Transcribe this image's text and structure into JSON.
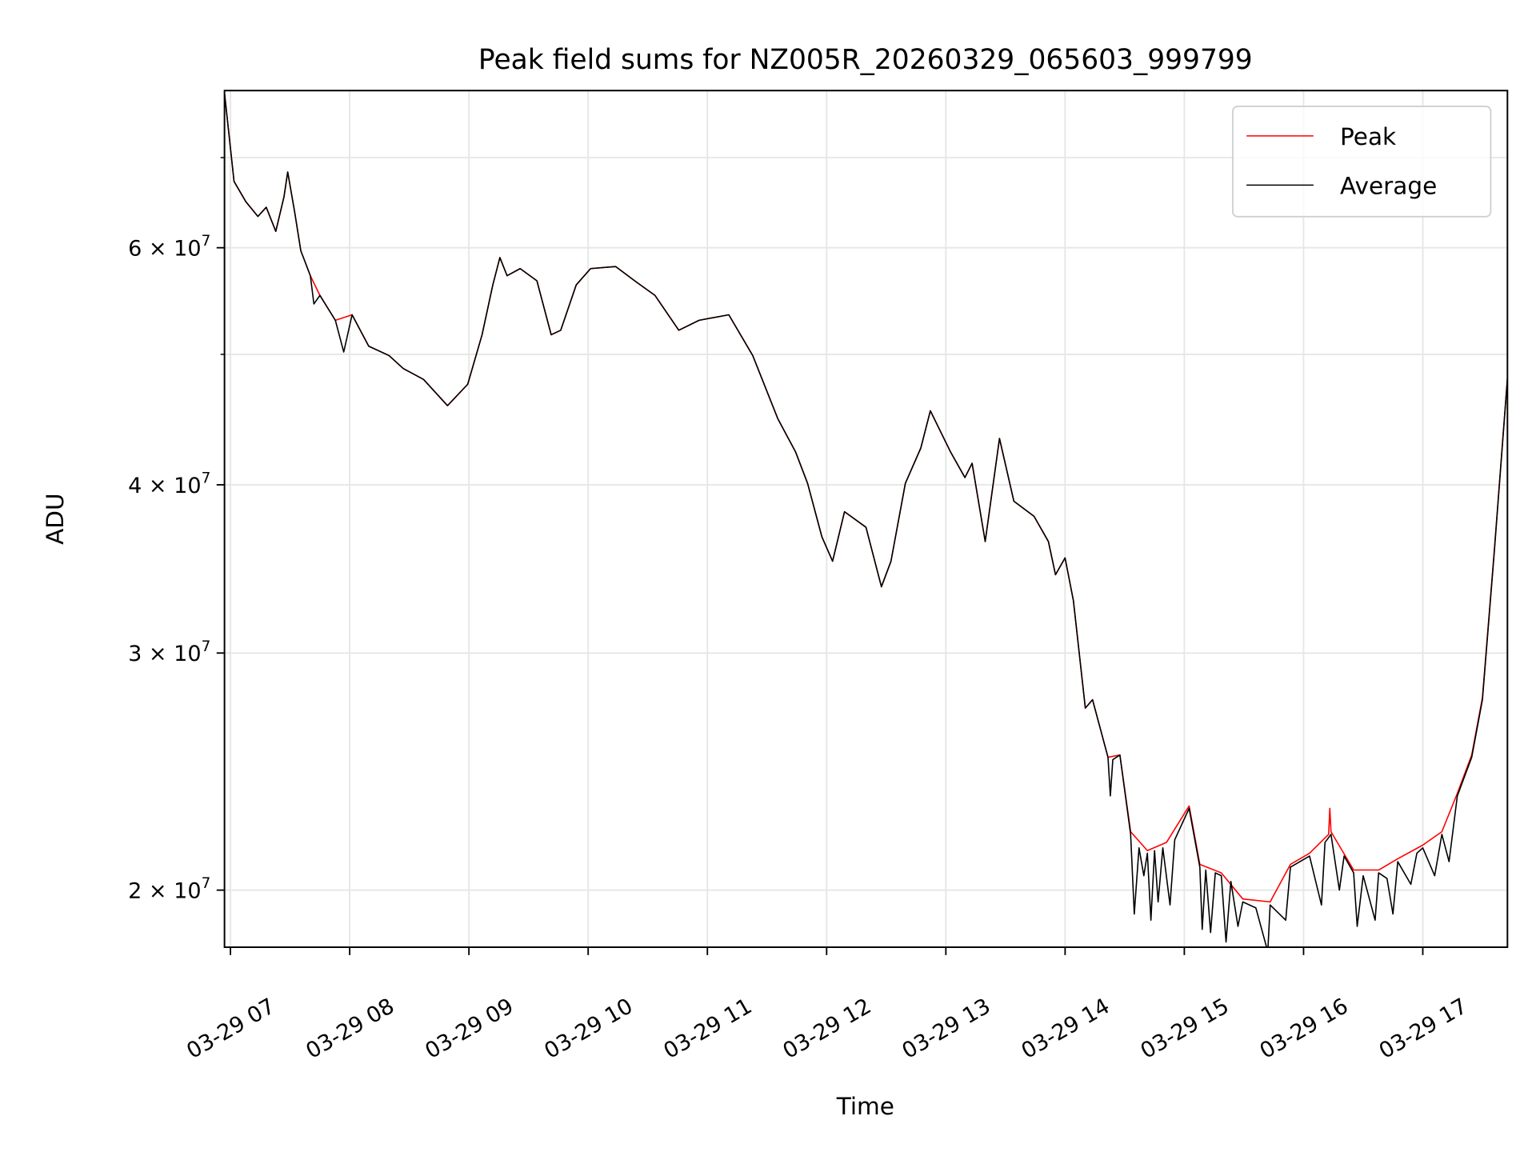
{
  "chart_data": {
    "type": "line",
    "title": "Peak field sums for NZ005R_20260329_065603_999799",
    "xlabel": "Time",
    "ylabel": "ADU",
    "x_unit": "hour of day (2026-03-29)",
    "y_unit": "ADU (x1e7)",
    "yscale": "log",
    "xlim": [
      6.95,
      17.71
    ],
    "ylim": [
      1.814,
      7.85
    ],
    "grid": true,
    "legend_position": "top-right",
    "x_ticks": [
      {
        "value": 7,
        "label": "03-29 07"
      },
      {
        "value": 8,
        "label": "03-29 08"
      },
      {
        "value": 9,
        "label": "03-29 09"
      },
      {
        "value": 10,
        "label": "03-29 10"
      },
      {
        "value": 11,
        "label": "03-29 11"
      },
      {
        "value": 12,
        "label": "03-29 12"
      },
      {
        "value": 13,
        "label": "03-29 13"
      },
      {
        "value": 14,
        "label": "03-29 14"
      },
      {
        "value": 15,
        "label": "03-29 15"
      },
      {
        "value": 16,
        "label": "03-29 16"
      },
      {
        "value": 17,
        "label": "03-29 17"
      }
    ],
    "y_ticks": [
      {
        "value": 2,
        "mantissa": "2",
        "label": "2 × 10",
        "exp": "7"
      },
      {
        "value": 3,
        "mantissa": "3",
        "label": "3 × 10",
        "exp": "7"
      },
      {
        "value": 4,
        "mantissa": "4",
        "label": "4 × 10",
        "exp": "7"
      },
      {
        "value": 6,
        "mantissa": "6",
        "label": "6 × 10",
        "exp": "7"
      }
    ],
    "y_minor_ticks": [
      5,
      7
    ],
    "series": [
      {
        "name": "Peak",
        "color": "#ff0000",
        "points": [
          [
            6.95,
            7.82
          ],
          [
            7.03,
            6.72
          ],
          [
            7.13,
            6.49
          ],
          [
            7.23,
            6.33
          ],
          [
            7.3,
            6.43
          ],
          [
            7.38,
            6.17
          ],
          [
            7.45,
            6.55
          ],
          [
            7.48,
            6.83
          ],
          [
            7.54,
            6.37
          ],
          [
            7.59,
            5.97
          ],
          [
            7.67,
            5.72
          ],
          [
            7.75,
            5.53
          ],
          [
            7.88,
            5.3
          ],
          [
            8.02,
            5.35
          ],
          [
            8.16,
            5.07
          ],
          [
            8.33,
            4.99
          ],
          [
            8.45,
            4.88
          ],
          [
            8.62,
            4.79
          ],
          [
            8.82,
            4.58
          ],
          [
            8.99,
            4.75
          ],
          [
            9.11,
            5.17
          ],
          [
            9.2,
            5.63
          ],
          [
            9.26,
            5.9
          ],
          [
            9.32,
            5.72
          ],
          [
            9.43,
            5.79
          ],
          [
            9.57,
            5.67
          ],
          [
            9.69,
            5.17
          ],
          [
            9.77,
            5.21
          ],
          [
            9.9,
            5.63
          ],
          [
            10.02,
            5.79
          ],
          [
            10.23,
            5.81
          ],
          [
            10.39,
            5.67
          ],
          [
            10.56,
            5.53
          ],
          [
            10.76,
            5.21
          ],
          [
            10.93,
            5.3
          ],
          [
            11.18,
            5.35
          ],
          [
            11.38,
            4.99
          ],
          [
            11.59,
            4.48
          ],
          [
            11.74,
            4.23
          ],
          [
            11.84,
            4.01
          ],
          [
            11.96,
            3.66
          ],
          [
            12.05,
            3.51
          ],
          [
            12.15,
            3.82
          ],
          [
            12.33,
            3.72
          ],
          [
            12.46,
            3.36
          ],
          [
            12.54,
            3.51
          ],
          [
            12.66,
            4.01
          ],
          [
            12.79,
            4.26
          ],
          [
            12.87,
            4.54
          ],
          [
            13.04,
            4.23
          ],
          [
            13.16,
            4.05
          ],
          [
            13.22,
            4.15
          ],
          [
            13.33,
            3.63
          ],
          [
            13.45,
            4.33
          ],
          [
            13.57,
            3.89
          ],
          [
            13.74,
            3.79
          ],
          [
            13.86,
            3.63
          ],
          [
            13.92,
            3.43
          ],
          [
            14.0,
            3.53
          ],
          [
            14.07,
            3.28
          ],
          [
            14.17,
            2.73
          ],
          [
            14.23,
            2.77
          ],
          [
            14.36,
            2.51
          ],
          [
            14.46,
            2.52
          ],
          [
            14.55,
            2.21
          ],
          [
            14.69,
            2.14
          ],
          [
            14.85,
            2.17
          ],
          [
            15.04,
            2.31
          ],
          [
            15.13,
            2.09
          ],
          [
            15.31,
            2.06
          ],
          [
            15.49,
            1.97
          ],
          [
            15.72,
            1.96
          ],
          [
            15.89,
            2.09
          ],
          [
            16.05,
            2.13
          ],
          [
            16.21,
            2.2
          ],
          [
            16.22,
            2.3
          ],
          [
            16.23,
            2.21
          ],
          [
            16.42,
            2.07
          ],
          [
            16.63,
            2.07
          ],
          [
            16.79,
            2.11
          ],
          [
            17.0,
            2.16
          ],
          [
            17.16,
            2.21
          ],
          [
            17.29,
            2.36
          ],
          [
            17.41,
            2.52
          ],
          [
            17.5,
            2.78
          ],
          [
            17.6,
            3.58
          ],
          [
            17.71,
            4.8
          ]
        ]
      },
      {
        "name": "Average",
        "color": "#000000",
        "points": [
          [
            6.95,
            7.82
          ],
          [
            7.03,
            6.72
          ],
          [
            7.13,
            6.49
          ],
          [
            7.23,
            6.33
          ],
          [
            7.3,
            6.43
          ],
          [
            7.38,
            6.17
          ],
          [
            7.45,
            6.55
          ],
          [
            7.48,
            6.83
          ],
          [
            7.54,
            6.37
          ],
          [
            7.59,
            5.97
          ],
          [
            7.67,
            5.72
          ],
          [
            7.7,
            5.45
          ],
          [
            7.75,
            5.53
          ],
          [
            7.88,
            5.3
          ],
          [
            7.95,
            5.02
          ],
          [
            8.02,
            5.35
          ],
          [
            8.16,
            5.07
          ],
          [
            8.33,
            4.99
          ],
          [
            8.45,
            4.88
          ],
          [
            8.62,
            4.79
          ],
          [
            8.82,
            4.58
          ],
          [
            8.99,
            4.75
          ],
          [
            9.11,
            5.17
          ],
          [
            9.2,
            5.63
          ],
          [
            9.26,
            5.9
          ],
          [
            9.32,
            5.72
          ],
          [
            9.43,
            5.79
          ],
          [
            9.57,
            5.67
          ],
          [
            9.69,
            5.17
          ],
          [
            9.77,
            5.21
          ],
          [
            9.9,
            5.63
          ],
          [
            10.02,
            5.79
          ],
          [
            10.23,
            5.81
          ],
          [
            10.39,
            5.67
          ],
          [
            10.56,
            5.53
          ],
          [
            10.76,
            5.21
          ],
          [
            10.93,
            5.3
          ],
          [
            11.18,
            5.35
          ],
          [
            11.38,
            4.99
          ],
          [
            11.59,
            4.48
          ],
          [
            11.74,
            4.23
          ],
          [
            11.84,
            4.01
          ],
          [
            11.96,
            3.66
          ],
          [
            12.05,
            3.51
          ],
          [
            12.15,
            3.82
          ],
          [
            12.33,
            3.72
          ],
          [
            12.46,
            3.36
          ],
          [
            12.54,
            3.51
          ],
          [
            12.66,
            4.01
          ],
          [
            12.79,
            4.26
          ],
          [
            12.87,
            4.54
          ],
          [
            13.04,
            4.23
          ],
          [
            13.16,
            4.05
          ],
          [
            13.22,
            4.15
          ],
          [
            13.33,
            3.63
          ],
          [
            13.45,
            4.33
          ],
          [
            13.57,
            3.89
          ],
          [
            13.74,
            3.79
          ],
          [
            13.86,
            3.63
          ],
          [
            13.92,
            3.43
          ],
          [
            14.0,
            3.53
          ],
          [
            14.07,
            3.28
          ],
          [
            14.17,
            2.73
          ],
          [
            14.23,
            2.77
          ],
          [
            14.36,
            2.51
          ],
          [
            14.38,
            2.35
          ],
          [
            14.4,
            2.5
          ],
          [
            14.46,
            2.52
          ],
          [
            14.55,
            2.2
          ],
          [
            14.58,
            1.92
          ],
          [
            14.62,
            2.15
          ],
          [
            14.66,
            2.05
          ],
          [
            14.69,
            2.13
          ],
          [
            14.72,
            1.9
          ],
          [
            14.75,
            2.14
          ],
          [
            14.78,
            1.96
          ],
          [
            14.82,
            2.15
          ],
          [
            14.88,
            1.95
          ],
          [
            14.92,
            2.18
          ],
          [
            15.04,
            2.3
          ],
          [
            15.13,
            2.08
          ],
          [
            15.15,
            1.87
          ],
          [
            15.18,
            2.07
          ],
          [
            15.22,
            1.86
          ],
          [
            15.26,
            2.06
          ],
          [
            15.31,
            2.05
          ],
          [
            15.35,
            1.83
          ],
          [
            15.39,
            2.03
          ],
          [
            15.45,
            1.88
          ],
          [
            15.49,
            1.96
          ],
          [
            15.6,
            1.94
          ],
          [
            15.7,
            1.8
          ],
          [
            15.72,
            1.95
          ],
          [
            15.85,
            1.9
          ],
          [
            15.89,
            2.08
          ],
          [
            16.05,
            2.12
          ],
          [
            16.15,
            1.95
          ],
          [
            16.18,
            2.17
          ],
          [
            16.23,
            2.2
          ],
          [
            16.3,
            2.0
          ],
          [
            16.34,
            2.12
          ],
          [
            16.42,
            2.06
          ],
          [
            16.45,
            1.88
          ],
          [
            16.5,
            2.05
          ],
          [
            16.6,
            1.9
          ],
          [
            16.63,
            2.06
          ],
          [
            16.7,
            2.04
          ],
          [
            16.75,
            1.92
          ],
          [
            16.79,
            2.1
          ],
          [
            16.9,
            2.02
          ],
          [
            16.95,
            2.13
          ],
          [
            17.0,
            2.15
          ],
          [
            17.1,
            2.05
          ],
          [
            17.16,
            2.2
          ],
          [
            17.22,
            2.1
          ],
          [
            17.29,
            2.35
          ],
          [
            17.41,
            2.51
          ],
          [
            17.5,
            2.77
          ],
          [
            17.6,
            3.57
          ],
          [
            17.71,
            4.8
          ]
        ]
      }
    ]
  }
}
